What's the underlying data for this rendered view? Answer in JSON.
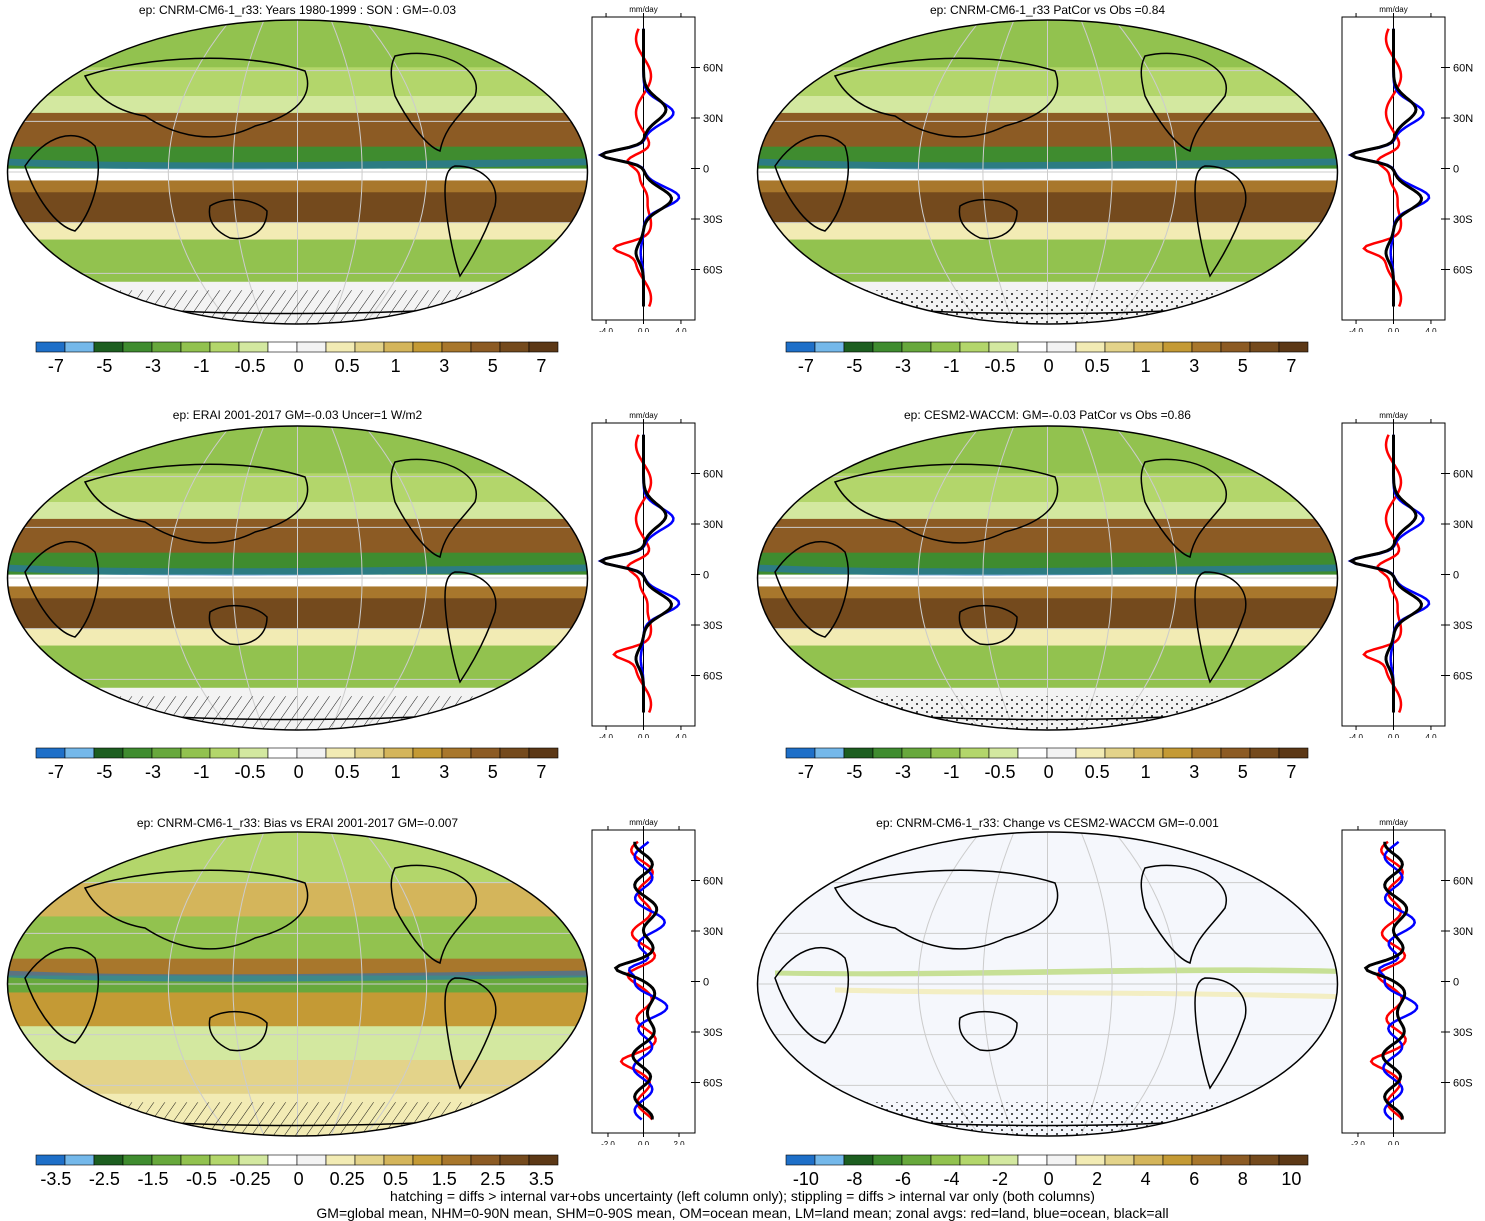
{
  "colors": {
    "scale": [
      "#1e6fc8",
      "#74b8ea",
      "#1d5e20",
      "#3f8c2f",
      "#67a83c",
      "#92c24f",
      "#b3d66b",
      "#d3e8a0",
      "#ffffff",
      "#f3f3f3",
      "#f2ebb4",
      "#e3d38a",
      "#d4b55b",
      "#c49a35",
      "#a8772c",
      "#8c5b24",
      "#744a1d",
      "#5c3816"
    ],
    "land_line": "#000000",
    "land": "#e6c87a",
    "ocean": "#8ec46a",
    "all": "#000000",
    "grid": "#cccccc"
  },
  "chart_data": [
    {
      "type": "heatmap",
      "title": "ep: CNRM-CM6-1_r33: Years 1980-1999 : SON : GM=-0.03",
      "colorbar_ticks": [
        "-7",
        "-5",
        "-3",
        "-1",
        "-0.5",
        "0",
        "0.5",
        "1",
        "3",
        "5",
        "7"
      ],
      "zonal": {
        "unit": "mm/day",
        "x_ticks": [
          "-4.0",
          "0.0",
          "4.0"
        ],
        "xlim": [
          -5.5,
          5.5
        ],
        "y_ticks": [
          "60N",
          "30N",
          "0",
          "30S",
          "60S"
        ]
      }
    },
    {
      "type": "heatmap",
      "title": "ep: CNRM-CM6-1_r33 PatCor vs Obs =0.84",
      "colorbar_ticks": [
        "-7",
        "-5",
        "-3",
        "-1",
        "-0.5",
        "0",
        "0.5",
        "1",
        "3",
        "5",
        "7"
      ],
      "zonal": {
        "unit": "mm/day",
        "x_ticks": [
          "-4.0",
          "0.0",
          "4.0"
        ],
        "xlim": [
          -5.5,
          5.5
        ],
        "y_ticks": [
          "60N",
          "30N",
          "0",
          "30S",
          "60S"
        ]
      }
    },
    {
      "type": "heatmap",
      "title": "ep: ERAI 2001-2017 GM=-0.03 Uncer=1 W/m2",
      "colorbar_ticks": [
        "-7",
        "-5",
        "-3",
        "-1",
        "-0.5",
        "0",
        "0.5",
        "1",
        "3",
        "5",
        "7"
      ],
      "zonal": {
        "unit": "mm/day",
        "x_ticks": [
          "-4.0",
          "0.0",
          "4.0"
        ],
        "xlim": [
          -5.5,
          5.5
        ],
        "y_ticks": [
          "60N",
          "30N",
          "0",
          "30S",
          "60S"
        ]
      }
    },
    {
      "type": "heatmap",
      "title": "ep: CESM2-WACCM: GM=-0.03 PatCor vs Obs =0.86",
      "colorbar_ticks": [
        "-7",
        "-5",
        "-3",
        "-1",
        "-0.5",
        "0",
        "0.5",
        "1",
        "3",
        "5",
        "7"
      ],
      "zonal": {
        "unit": "mm/day",
        "x_ticks": [
          "-4.0",
          "0.0",
          "4.0"
        ],
        "xlim": [
          -5.5,
          5.5
        ],
        "y_ticks": [
          "60N",
          "30N",
          "0",
          "30S",
          "60S"
        ]
      }
    },
    {
      "type": "heatmap",
      "title": "ep: CNRM-CM6-1_r33: Bias vs ERAI 2001-2017  GM=-0.007",
      "colorbar_ticks": [
        "-3.5",
        "-2.5",
        "-1.5",
        "-0.5",
        "-0.25",
        "0",
        "0.25",
        "0.5",
        "1.5",
        "2.5",
        "3.5"
      ],
      "zonal": {
        "unit": "mm/day",
        "x_ticks": [
          "-2.0",
          "0.0",
          "2.0"
        ],
        "xlim": [
          -2.9,
          2.9
        ],
        "y_ticks": [
          "60N",
          "30N",
          "0",
          "30S",
          "60S"
        ]
      }
    },
    {
      "type": "heatmap",
      "title": "ep: CNRM-CM6-1_r33: Change vs CESM2-WACCM GM=-0.001",
      "colorbar_ticks": [
        "-10",
        "-8",
        "-6",
        "-4",
        "-2",
        "0",
        "2",
        "4",
        "6",
        "8",
        "10"
      ],
      "zonal": {
        "unit": "mm/day",
        "x_ticks": [
          "-2.0",
          "0.0"
        ],
        "xlim": [
          -2.9,
          2.9
        ],
        "y_ticks": [
          "60N",
          "30N",
          "0",
          "30S",
          "60S"
        ]
      }
    }
  ],
  "footnote": {
    "line1": "hatching = diffs > internal var+obs uncertainty (left column only); stippling = diffs > internal var only (both columns)",
    "line2": "GM=global mean, NHM=0-90N mean, SHM=0-90S mean, OM=ocean mean, LM=land mean; zonal avgs: red=land, blue=ocean, black=all"
  }
}
